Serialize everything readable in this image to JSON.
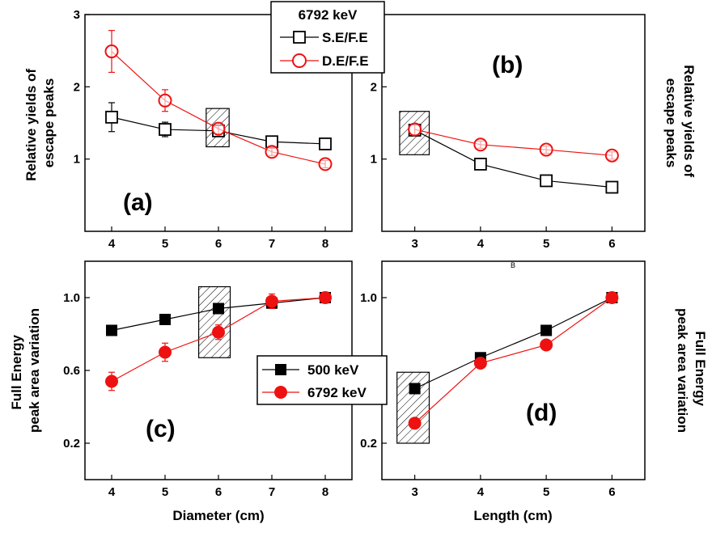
{
  "colors": {
    "black": "#000000",
    "red": "#ee1111"
  },
  "y_label_top_left": [
    "Relative yields of",
    "escape peaks"
  ],
  "y_label_top_right": [
    "Relative yields of",
    "escape peaks"
  ],
  "y_label_bottom_left": [
    "Full Energy",
    "peak area variation"
  ],
  "y_label_bottom_right": [
    "Full Energy",
    "peak area variation"
  ],
  "x_label_left": "Diameter (cm)",
  "x_label_right": "Length (cm)",
  "stray_mark": "B",
  "legend_top": {
    "title": "6792 keV",
    "items": [
      "S.E/F.E",
      "D.E/F.E"
    ]
  },
  "legend_bottom": {
    "items": [
      "500 keV",
      "6792 keV"
    ]
  },
  "chart_data": [
    {
      "panel": "(a)",
      "type": "line",
      "x": [
        4,
        5,
        6,
        7,
        8
      ],
      "xlim": [
        3.5,
        8.5
      ],
      "ylim": [
        0,
        3
      ],
      "xticks": [
        "4",
        "5",
        "6",
        "7",
        "8"
      ],
      "yticks": [
        "1",
        "2",
        "3"
      ],
      "ytick_values": [
        1,
        2,
        3
      ],
      "series": [
        {
          "name": "S.E/F.E",
          "marker": "open-square",
          "color": "#000000",
          "values": [
            1.58,
            1.41,
            1.39,
            1.24,
            1.21
          ],
          "errors": [
            0.2,
            0.1,
            0.05,
            0.04,
            0.04
          ]
        },
        {
          "name": "D.E/F.E",
          "marker": "open-circle",
          "color": "#ee1111",
          "values": [
            2.49,
            1.81,
            1.42,
            1.1,
            0.93
          ],
          "errors": [
            0.29,
            0.15,
            0.08,
            0.05,
            0.05
          ]
        }
      ],
      "highlight_box": {
        "x": [
          5.77,
          6.2
        ],
        "y": [
          1.17,
          1.7
        ]
      }
    },
    {
      "panel": "(b)",
      "type": "line",
      "x": [
        3,
        4,
        5,
        6
      ],
      "xlim": [
        2.5,
        6.5
      ],
      "ylim": [
        0,
        3
      ],
      "xticks": [
        "3",
        "4",
        "5",
        "6"
      ],
      "yticks": [
        "1",
        "2"
      ],
      "ytick_values": [
        1,
        2
      ],
      "series": [
        {
          "name": "S.E/F.E",
          "marker": "open-square",
          "color": "#000000",
          "values": [
            1.4,
            0.93,
            0.7,
            0.61
          ],
          "errors": [
            0.08,
            0.03,
            0.03,
            0.03
          ]
        },
        {
          "name": "D.E/F.E",
          "marker": "open-circle",
          "color": "#ee1111",
          "values": [
            1.41,
            1.2,
            1.13,
            1.05
          ],
          "errors": [
            0.08,
            0.05,
            0.05,
            0.05
          ]
        }
      ],
      "highlight_box": {
        "x": [
          2.77,
          3.22
        ],
        "y": [
          1.06,
          1.66
        ]
      }
    },
    {
      "panel": "(c)",
      "type": "line",
      "x": [
        4,
        5,
        6,
        7,
        8
      ],
      "xlim": [
        3.5,
        8.5
      ],
      "ylim": [
        0.0,
        1.2
      ],
      "xticks": [
        "4",
        "5",
        "6",
        "7",
        "8"
      ],
      "yticks": [
        "0.2",
        "0.6",
        "1.0"
      ],
      "ytick_values": [
        0.2,
        0.6,
        1.0
      ],
      "series": [
        {
          "name": "500 keV",
          "marker": "filled-square",
          "color": "#000000",
          "values": [
            0.82,
            0.88,
            0.94,
            0.97,
            1.0
          ],
          "errors": [
            0,
            0,
            0,
            0,
            0
          ]
        },
        {
          "name": "6792 keV",
          "marker": "filled-circle",
          "color": "#ee1111",
          "values": [
            0.54,
            0.7,
            0.81,
            0.98,
            1.0
          ],
          "errors": [
            0.05,
            0.05,
            0.04,
            0.04,
            0.03
          ]
        }
      ],
      "highlight_box": {
        "x": [
          5.63,
          6.22
        ],
        "y": [
          0.67,
          1.06
        ]
      }
    },
    {
      "panel": "(d)",
      "type": "line",
      "x": [
        3,
        4,
        5,
        6
      ],
      "xlim": [
        2.5,
        6.5
      ],
      "ylim": [
        0.0,
        1.2
      ],
      "xticks": [
        "3",
        "4",
        "5",
        "6"
      ],
      "yticks": [
        "0.2",
        "0.6",
        "1.0"
      ],
      "ytick_values": [
        0.2,
        0.6,
        1.0
      ],
      "series": [
        {
          "name": "500 keV",
          "marker": "filled-square",
          "color": "#000000",
          "values": [
            0.5,
            0.67,
            0.82,
            1.0
          ],
          "errors": [
            0,
            0,
            0,
            0
          ]
        },
        {
          "name": "6792 keV",
          "marker": "filled-circle",
          "color": "#ee1111",
          "values": [
            0.31,
            0.64,
            0.74,
            1.0
          ],
          "errors": [
            0,
            0,
            0,
            0
          ]
        }
      ],
      "highlight_box": {
        "x": [
          2.73,
          3.22
        ],
        "y": [
          0.2,
          0.59
        ]
      }
    }
  ]
}
